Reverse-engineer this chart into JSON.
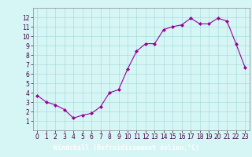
{
  "x": [
    0,
    1,
    2,
    3,
    4,
    5,
    6,
    7,
    8,
    9,
    10,
    11,
    12,
    13,
    14,
    15,
    16,
    17,
    18,
    19,
    20,
    21,
    22,
    23
  ],
  "y": [
    3.7,
    3.0,
    2.7,
    2.2,
    1.3,
    1.6,
    1.8,
    2.5,
    4.0,
    4.3,
    6.5,
    8.4,
    9.2,
    9.2,
    10.7,
    11.0,
    11.2,
    11.9,
    11.3,
    11.3,
    11.9,
    11.6,
    9.2,
    6.7
  ],
  "line_color": "#990099",
  "marker": "D",
  "marker_size": 2.0,
  "bg_color": "#d6f5f5",
  "grid_color": "#aadddd",
  "xlabel": "Windchill (Refroidissement éolien,°C)",
  "xlabel_color": "#ffffff",
  "xlabel_bg": "#990099",
  "xlim": [
    -0.5,
    23.5
  ],
  "ylim": [
    0,
    13
  ],
  "yticks": [
    1,
    2,
    3,
    4,
    5,
    6,
    7,
    8,
    9,
    10,
    11,
    12
  ],
  "xticks": [
    0,
    1,
    2,
    3,
    4,
    5,
    6,
    7,
    8,
    9,
    10,
    11,
    12,
    13,
    14,
    15,
    16,
    17,
    18,
    19,
    20,
    21,
    22,
    23
  ],
  "tick_fontsize": 5.5,
  "label_fontsize": 6.0,
  "spine_color": "#888888",
  "axis_bg_color": "#d6f5f5"
}
